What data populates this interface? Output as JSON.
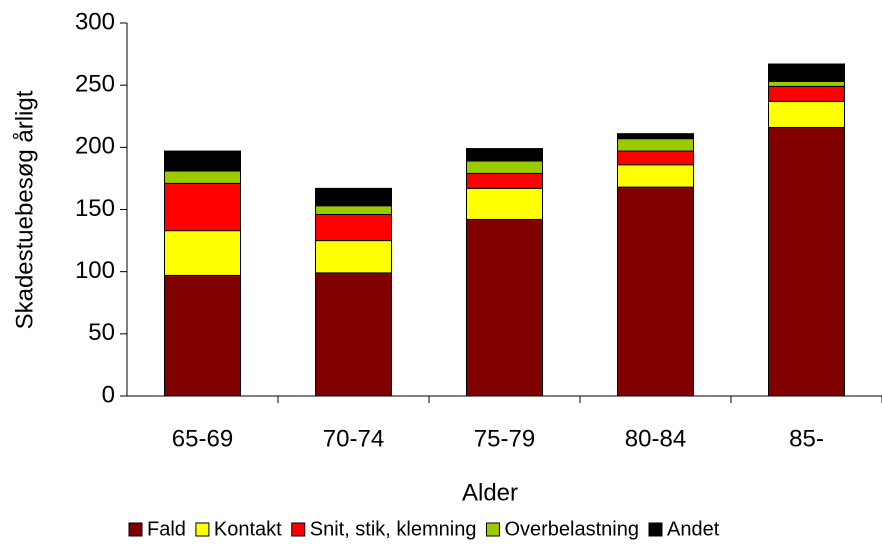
{
  "chart_data": {
    "type": "stacked-bar",
    "x_label": "Alder",
    "y_label": "Skadestuebesøg årligt",
    "categories": [
      "65-69",
      "70-74",
      "75-79",
      "80-84",
      "85-"
    ],
    "series": [
      {
        "name": "Fald",
        "color": "#800000",
        "values": [
          97,
          99,
          142,
          168,
          216
        ]
      },
      {
        "name": "Kontakt",
        "color": "#ffff00",
        "values": [
          36,
          26,
          25,
          18,
          21
        ]
      },
      {
        "name": "Snit, stik, klemning",
        "color": "#ff0000",
        "values": [
          38,
          21,
          12,
          11,
          12
        ]
      },
      {
        "name": "Overbelastning",
        "color": "#99cc00",
        "values": [
          10,
          7,
          10,
          10,
          4
        ]
      },
      {
        "name": "Andet",
        "color": "#000000",
        "values": [
          16,
          14,
          10,
          4,
          14
        ]
      }
    ],
    "ylim": [
      0,
      300
    ],
    "yticks": [
      0,
      50,
      100,
      150,
      200,
      250,
      300
    ],
    "grid": false,
    "legend": "bottom"
  }
}
